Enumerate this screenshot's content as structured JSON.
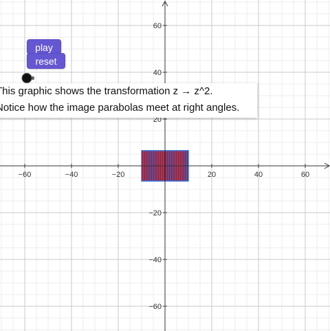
{
  "controls": {
    "play_label": "play",
    "reset_label": "reset",
    "slider_icon": "slider-handle-icon"
  },
  "caption": {
    "line1": "This graphic shows the transformation z → z^2.",
    "line2": "Notice how the image parabolas meet at right angles."
  },
  "graph": {
    "x_ticks": [
      "−60",
      "−40",
      "−20",
      "20",
      "40",
      "60"
    ],
    "y_ticks_pos": [
      "60",
      "40",
      "20"
    ],
    "y_ticks_neg": [
      "−20",
      "−40",
      "−60"
    ],
    "x_range": [
      -70,
      70
    ],
    "y_range": [
      -70,
      70
    ],
    "grid": true,
    "region": {
      "x_range": [
        -10,
        10
      ],
      "y_range": [
        -6.5,
        6.5
      ],
      "red_lines": 26,
      "blue_lines": 26
    },
    "colors": {
      "axis": "#333333",
      "grid_major": "#c8c8c8",
      "grid_minor": "#ececec",
      "red": "#d0202a",
      "blue": "#3b6fd6"
    }
  }
}
